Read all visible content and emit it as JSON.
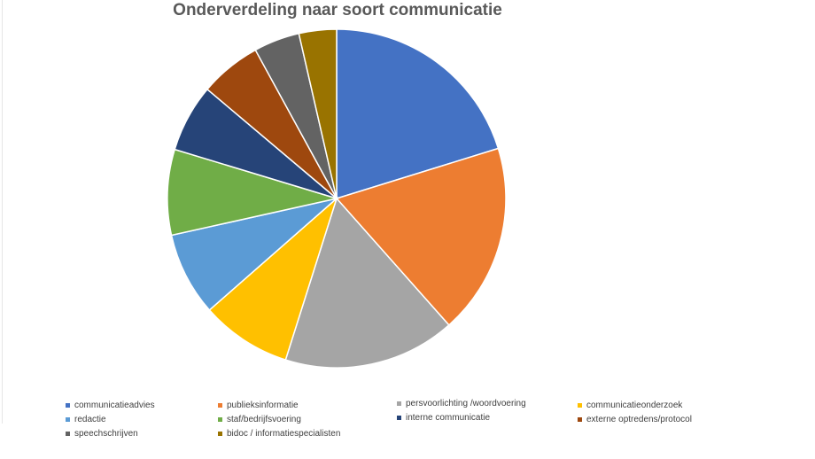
{
  "chart_data": {
    "type": "pie",
    "title": "Onderverdeling naar soort communicatie",
    "legend_placement": "bottom",
    "slices": [
      {
        "label": "communicatieadvies",
        "value": 20.3,
        "color": "#4472C4"
      },
      {
        "label": "publieksinformatie",
        "value": 18.3,
        "color": "#ED7D31"
      },
      {
        "label": "persvoorlichting /woordvoering",
        "value": 16.5,
        "color": "#A5A5A5"
      },
      {
        "label": "communicatieonderzoek",
        "value": 8.7,
        "color": "#FFC000"
      },
      {
        "label": "redactie",
        "value": 8.0,
        "color": "#5B9BD5"
      },
      {
        "label": "staf/bedrijfsvoering",
        "value": 8.2,
        "color": "#70AD47"
      },
      {
        "label": "interne communicatie",
        "value": 6.5,
        "color": "#264478"
      },
      {
        "label": "externe optredens/protocol",
        "value": 5.9,
        "color": "#9E480E"
      },
      {
        "label": "speechschrijven",
        "value": 4.4,
        "color": "#636363"
      },
      {
        "label": "bidoc / informatiespecialisten",
        "value": 3.6,
        "color": "#997300"
      }
    ]
  }
}
